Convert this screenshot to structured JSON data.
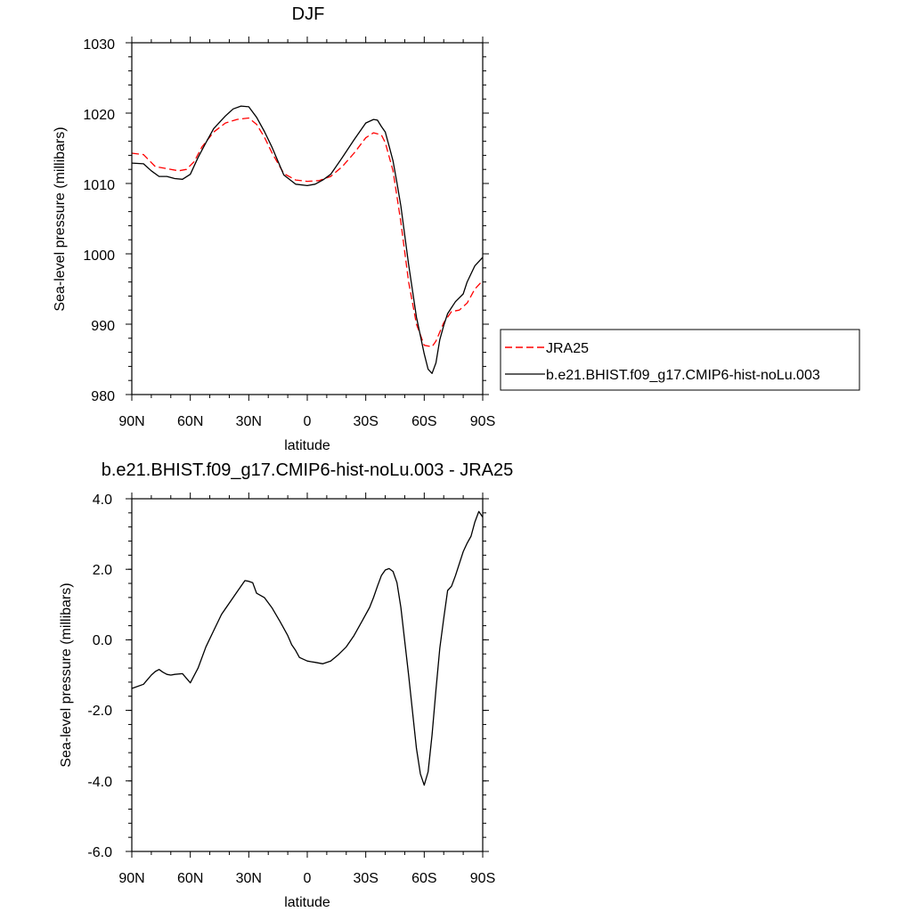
{
  "chart_data": [
    {
      "type": "line",
      "title": "DJF",
      "xlabel": "latitude",
      "ylabel": "Sea-level pressure (millibars)",
      "xlim": [
        90,
        -90
      ],
      "ylim": [
        980,
        1030
      ],
      "xticks": [
        90,
        60,
        30,
        0,
        -30,
        -60,
        -90
      ],
      "xtick_labels": [
        "90N",
        "60N",
        "30N",
        "0",
        "30S",
        "60S",
        "90S"
      ],
      "yticks": [
        980,
        990,
        1000,
        1010,
        1020,
        1030
      ],
      "ytick_labels": [
        "980",
        "990",
        "1000",
        "1010",
        "1020",
        "1030"
      ],
      "legend_position": "right",
      "series": [
        {
          "name": "JRA25",
          "color": "#ff0000",
          "dash": true,
          "x": [
            90,
            84,
            78,
            72,
            66,
            62,
            58,
            54,
            48,
            42,
            36,
            30,
            26,
            22,
            18,
            12,
            6,
            0,
            -6,
            -12,
            -18,
            -24,
            -30,
            -34,
            -38,
            -40,
            -44,
            -48,
            -52,
            -56,
            -60,
            -64,
            -66,
            -70,
            -74,
            -78,
            -82,
            -86,
            -90
          ],
          "values": [
            1014.3,
            1014.1,
            1012.4,
            1012.1,
            1011.8,
            1012.0,
            1013.1,
            1015.2,
            1017.3,
            1018.6,
            1019.1,
            1019.3,
            1018.4,
            1016.6,
            1014.3,
            1011.4,
            1010.5,
            1010.3,
            1010.4,
            1011.0,
            1012.4,
            1014.3,
            1016.5,
            1017.2,
            1016.9,
            1015.8,
            1011.8,
            1004.5,
            996.0,
            990.0,
            987.0,
            986.8,
            987.6,
            990.2,
            991.8,
            992.0,
            993.0,
            995.0,
            996.2
          ]
        },
        {
          "name": "b.e21.BHIST.f09_g17.CMIP6-hist-noLu.003",
          "color": "#000000",
          "dash": false,
          "x": [
            90,
            84,
            80,
            76,
            72,
            68,
            64,
            60,
            56,
            52,
            48,
            42,
            38,
            34,
            30,
            26,
            22,
            18,
            12,
            6,
            0,
            -4,
            -8,
            -12,
            -18,
            -24,
            -30,
            -34,
            -36,
            -38,
            -40,
            -42,
            -44,
            -46,
            -48,
            -52,
            -56,
            -60,
            -62,
            -64,
            -66,
            -68,
            -70,
            -72,
            -76,
            -80,
            -82,
            -86,
            -90
          ],
          "values": [
            1012.9,
            1012.8,
            1011.8,
            1011.0,
            1011.0,
            1010.7,
            1010.6,
            1011.3,
            1013.7,
            1015.8,
            1017.8,
            1019.6,
            1020.6,
            1021.0,
            1020.9,
            1019.4,
            1017.4,
            1015.1,
            1011.2,
            1009.9,
            1009.7,
            1009.9,
            1010.5,
            1011.3,
            1013.7,
            1016.2,
            1018.6,
            1019.1,
            1019.0,
            1018.1,
            1017.3,
            1015.3,
            1013.2,
            1010.1,
            1006.8,
            998.5,
            991.0,
            985.8,
            983.6,
            983.0,
            984.5,
            987.8,
            989.8,
            991.5,
            993.2,
            994.3,
            996.0,
            998.3,
            999.5
          ]
        }
      ]
    },
    {
      "type": "line",
      "title": "b.e21.BHIST.f09_g17.CMIP6-hist-noLu.003 - JRA25",
      "xlabel": "latitude",
      "ylabel": "Sea-level pressure (millibars)",
      "xlim": [
        90,
        -90
      ],
      "ylim": [
        -6.0,
        4.0
      ],
      "xticks": [
        90,
        60,
        30,
        0,
        -30,
        -60,
        -90
      ],
      "xtick_labels": [
        "90N",
        "60N",
        "30N",
        "0",
        "30S",
        "60S",
        "90S"
      ],
      "yticks": [
        -6.0,
        -4.0,
        -2.0,
        0.0,
        2.0,
        4.0
      ],
      "ytick_labels": [
        "-6.0",
        "-4.0",
        "-2.0",
        "0.0",
        "2.0",
        "4.0"
      ],
      "series": [
        {
          "color": "#000000",
          "dash": false,
          "x": [
            90,
            84,
            80,
            78,
            76,
            74,
            72,
            70,
            68,
            64,
            60,
            56,
            52,
            48,
            44,
            40,
            36,
            32,
            30,
            28,
            26,
            22,
            18,
            14,
            10,
            8,
            6,
            4,
            0,
            -2,
            -4,
            -8,
            -12,
            -16,
            -20,
            -24,
            -28,
            -32,
            -34,
            -36,
            -38,
            -40,
            -42,
            -44,
            -46,
            -48,
            -52,
            -56,
            -58,
            -60,
            -62,
            -64,
            -66,
            -68,
            -70,
            -72,
            -74,
            -76,
            -80,
            -82,
            -84,
            -86,
            -88,
            -90
          ],
          "values": [
            -1.38,
            -1.26,
            -1.0,
            -0.9,
            -0.84,
            -0.92,
            -0.98,
            -1.0,
            -0.98,
            -0.96,
            -1.22,
            -0.8,
            -0.2,
            0.26,
            0.72,
            1.04,
            1.36,
            1.68,
            1.66,
            1.62,
            1.32,
            1.2,
            0.9,
            0.52,
            0.12,
            -0.14,
            -0.3,
            -0.5,
            -0.6,
            -0.62,
            -0.64,
            -0.68,
            -0.6,
            -0.42,
            -0.2,
            0.12,
            0.52,
            0.92,
            1.2,
            1.52,
            1.82,
            1.98,
            2.02,
            1.94,
            1.62,
            0.92,
            -1.0,
            -3.08,
            -3.8,
            -4.12,
            -3.74,
            -2.7,
            -1.42,
            -0.24,
            0.6,
            1.4,
            1.52,
            1.82,
            2.5,
            2.74,
            2.94,
            3.34,
            3.64,
            3.48
          ]
        }
      ]
    }
  ],
  "legend": {
    "entries": [
      "JRA25",
      "b.e21.BHIST.f09_g17.CMIP6-hist-noLu.003"
    ]
  }
}
